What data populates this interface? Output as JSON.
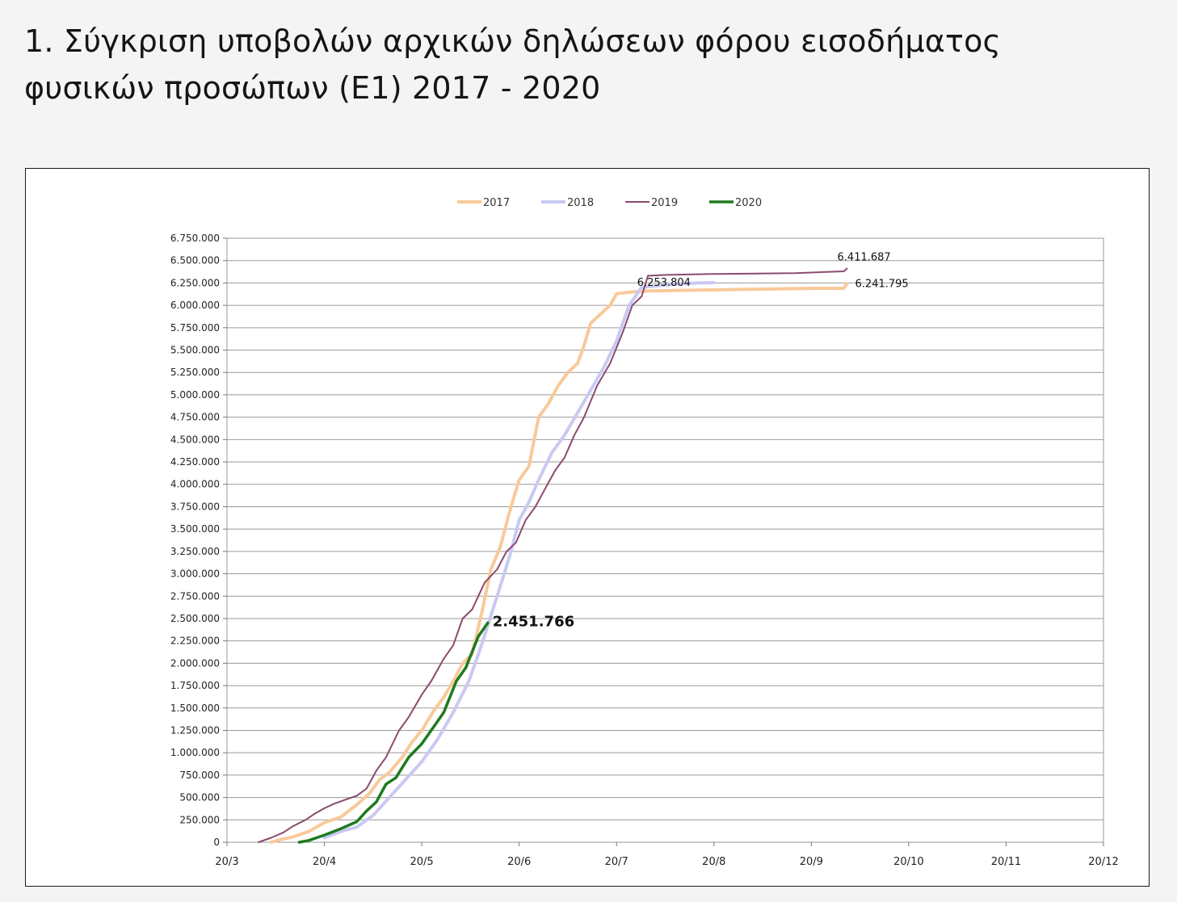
{
  "page": {
    "title": "1. Σύγκριση υποβολών αρχικών δηλώσεων φόρου εισοδήματος φυσικών προσώπων (Ε1) 2017 - 2020"
  },
  "chart_data": {
    "type": "line",
    "title": "",
    "xlabel": "",
    "ylabel": "",
    "x_unit": "day/month",
    "xlim": [
      "20/3",
      "20/12"
    ],
    "ylim": [
      0,
      6750000
    ],
    "y_step": 250000,
    "y_ticks": [
      "0",
      "250.000",
      "500.000",
      "750.000",
      "1.000.000",
      "1.250.000",
      "1.500.000",
      "1.750.000",
      "2.000.000",
      "2.250.000",
      "2.500.000",
      "2.750.000",
      "3.000.000",
      "3.250.000",
      "3.500.000",
      "3.750.000",
      "4.000.000",
      "4.250.000",
      "4.500.000",
      "4.750.000",
      "5.000.000",
      "5.250.000",
      "5.500.000",
      "5.750.000",
      "6.000.000",
      "6.250.000",
      "6.500.000",
      "6.750.000"
    ],
    "x_ticks": [
      "20/3",
      "20/4",
      "20/5",
      "20/6",
      "20/7",
      "20/8",
      "20/9",
      "20/10",
      "20/11",
      "20/12"
    ],
    "grid": "horizontal",
    "legend": "top-center",
    "series": [
      {
        "name": "2017",
        "color": "#f9c99a",
        "width": 4,
        "points": [
          [
            "03/04",
            0
          ],
          [
            "06/04",
            30000
          ],
          [
            "10/04",
            60000
          ],
          [
            "15/04",
            120000
          ],
          [
            "20/04",
            220000
          ],
          [
            "25/04",
            280000
          ],
          [
            "30/04",
            420000
          ],
          [
            "04/05",
            550000
          ],
          [
            "07/05",
            700000
          ],
          [
            "10/05",
            780000
          ],
          [
            "14/05",
            950000
          ],
          [
            "17/05",
            1120000
          ],
          [
            "20/05",
            1250000
          ],
          [
            "24/05",
            1480000
          ],
          [
            "27/05",
            1620000
          ],
          [
            "30/05",
            1800000
          ],
          [
            "02/06",
            2000000
          ],
          [
            "05/06",
            2100000
          ],
          [
            "08/06",
            2550000
          ],
          [
            "11/06",
            3050000
          ],
          [
            "14/06",
            3300000
          ],
          [
            "17/06",
            3700000
          ],
          [
            "20/06",
            4050000
          ],
          [
            "23/06",
            4200000
          ],
          [
            "26/06",
            4750000
          ],
          [
            "29/06",
            4900000
          ],
          [
            "02/07",
            5100000
          ],
          [
            "05/07",
            5250000
          ],
          [
            "08/07",
            5350000
          ],
          [
            "10/07",
            5550000
          ],
          [
            "12/07",
            5800000
          ],
          [
            "15/07",
            5900000
          ],
          [
            "18/07",
            6000000
          ],
          [
            "20/07",
            6130000
          ],
          [
            "25/07",
            6150000
          ],
          [
            "30/07",
            6160000
          ],
          [
            "15/08",
            6170000
          ],
          [
            "31/08",
            6180000
          ],
          [
            "20/09",
            6190000
          ],
          [
            "30/09",
            6190000
          ],
          [
            "01/10",
            6241795
          ]
        ]
      },
      {
        "name": "2018",
        "color": "#c9c9f2",
        "width": 4,
        "points": [
          [
            "20/04",
            50000
          ],
          [
            "25/04",
            120000
          ],
          [
            "30/04",
            170000
          ],
          [
            "05/05",
            300000
          ],
          [
            "10/05",
            500000
          ],
          [
            "15/05",
            700000
          ],
          [
            "20/05",
            900000
          ],
          [
            "25/05",
            1150000
          ],
          [
            "30/05",
            1450000
          ],
          [
            "04/06",
            1800000
          ],
          [
            "08/06",
            2200000
          ],
          [
            "13/06",
            2750000
          ],
          [
            "17/06",
            3200000
          ],
          [
            "20/06",
            3600000
          ],
          [
            "23/06",
            3800000
          ],
          [
            "26/06",
            4050000
          ],
          [
            "30/06",
            4350000
          ],
          [
            "04/07",
            4550000
          ],
          [
            "08/07",
            4800000
          ],
          [
            "12/07",
            5050000
          ],
          [
            "16/07",
            5300000
          ],
          [
            "20/07",
            5600000
          ],
          [
            "24/07",
            6000000
          ],
          [
            "28/07",
            6200000
          ],
          [
            "05/08",
            6230000
          ],
          [
            "15/08",
            6250000
          ],
          [
            "20/08",
            6253804
          ]
        ]
      },
      {
        "name": "2019",
        "color": "#8b4a6f",
        "width": 2,
        "points": [
          [
            "30/03",
            0
          ],
          [
            "03/04",
            50000
          ],
          [
            "07/04",
            110000
          ],
          [
            "10/04",
            180000
          ],
          [
            "14/04",
            250000
          ],
          [
            "17/04",
            320000
          ],
          [
            "20/04",
            380000
          ],
          [
            "23/04",
            430000
          ],
          [
            "26/04",
            470000
          ],
          [
            "30/04",
            520000
          ],
          [
            "03/05",
            600000
          ],
          [
            "06/05",
            800000
          ],
          [
            "09/05",
            950000
          ],
          [
            "13/05",
            1250000
          ],
          [
            "16/05",
            1400000
          ],
          [
            "20/05",
            1650000
          ],
          [
            "23/05",
            1800000
          ],
          [
            "27/05",
            2050000
          ],
          [
            "30/05",
            2200000
          ],
          [
            "02/06",
            2500000
          ],
          [
            "05/06",
            2600000
          ],
          [
            "09/06",
            2900000
          ],
          [
            "13/06",
            3050000
          ],
          [
            "16/06",
            3250000
          ],
          [
            "19/06",
            3350000
          ],
          [
            "22/06",
            3600000
          ],
          [
            "25/06",
            3750000
          ],
          [
            "28/06",
            3950000
          ],
          [
            "01/07",
            4150000
          ],
          [
            "04/07",
            4300000
          ],
          [
            "07/07",
            4550000
          ],
          [
            "10/07",
            4750000
          ],
          [
            "14/07",
            5100000
          ],
          [
            "18/07",
            5350000
          ],
          [
            "22/07",
            5700000
          ],
          [
            "25/07",
            6000000
          ],
          [
            "28/07",
            6100000
          ],
          [
            "30/07",
            6330000
          ],
          [
            "05/08",
            6340000
          ],
          [
            "20/08",
            6350000
          ],
          [
            "15/09",
            6360000
          ],
          [
            "30/09",
            6380000
          ],
          [
            "01/10",
            6411687
          ]
        ]
      },
      {
        "name": "2020",
        "color": "#1e7a1e",
        "width": 3.5,
        "points": [
          [
            "12/04",
            0
          ],
          [
            "15/04",
            20000
          ],
          [
            "20/04",
            80000
          ],
          [
            "25/04",
            150000
          ],
          [
            "30/04",
            230000
          ],
          [
            "03/05",
            350000
          ],
          [
            "06/05",
            450000
          ],
          [
            "09/05",
            650000
          ],
          [
            "12/05",
            720000
          ],
          [
            "16/05",
            950000
          ],
          [
            "20/05",
            1100000
          ],
          [
            "24/05",
            1300000
          ],
          [
            "27/05",
            1450000
          ],
          [
            "31/05",
            1800000
          ],
          [
            "03/06",
            1950000
          ],
          [
            "07/06",
            2300000
          ],
          [
            "09/06",
            2400000
          ],
          [
            "10/06",
            2451766
          ]
        ]
      }
    ],
    "annotations": [
      {
        "text": "6.411.687",
        "series": "2019",
        "bold": false
      },
      {
        "text": "6.253.804",
        "series": "2018",
        "bold": false
      },
      {
        "text": "6.241.795",
        "series": "2017",
        "bold": false
      },
      {
        "text": "2.451.766",
        "series": "2020",
        "bold": true
      }
    ]
  }
}
